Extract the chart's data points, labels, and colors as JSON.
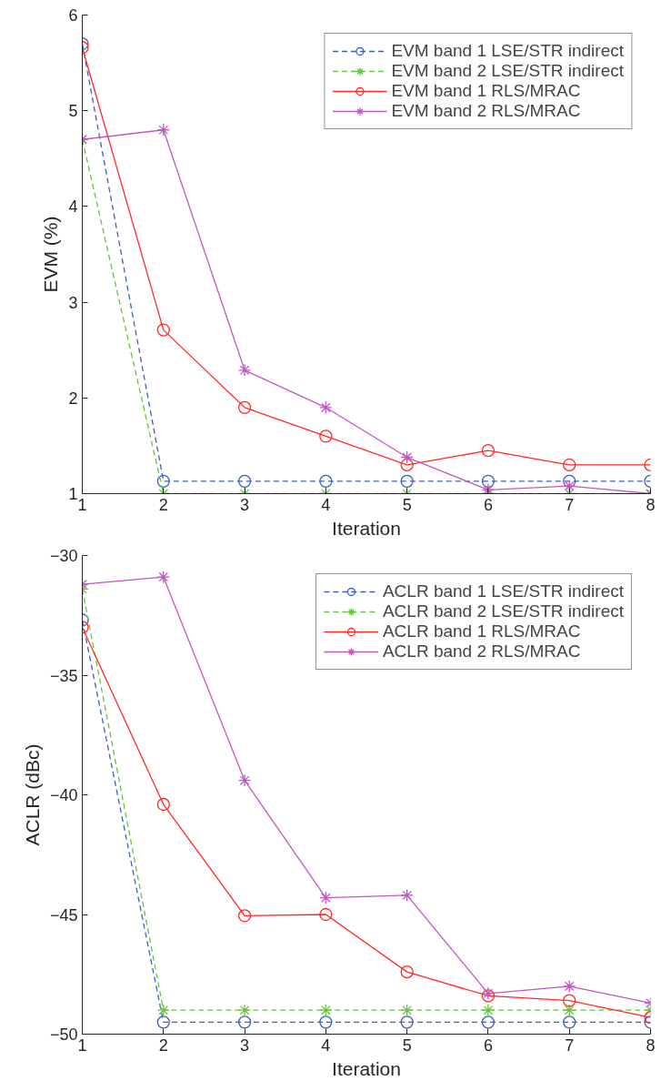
{
  "chart_data": [
    {
      "type": "line",
      "xlabel": "Iteration",
      "ylabel": "EVM (%)",
      "x": [
        1,
        2,
        3,
        4,
        5,
        6,
        7,
        8
      ],
      "xlim": [
        1,
        8
      ],
      "xticks": [
        1,
        2,
        3,
        4,
        5,
        6,
        7,
        8
      ],
      "ylim": [
        1,
        6
      ],
      "yticks": [
        1,
        2,
        3,
        4,
        5,
        6
      ],
      "grid": false,
      "legend": "top right",
      "series": [
        {
          "name": "EVM band 1 LSE/STR indirect",
          "color": "#3f5fbf",
          "marker": "circle",
          "line_style": "dashed",
          "values": [
            5.7,
            1.13,
            1.13,
            1.13,
            1.13,
            1.13,
            1.13,
            1.13
          ]
        },
        {
          "name": "EVM band 2 LSE/STR indirect",
          "color": "#66c33f",
          "marker": "cross",
          "line_style": "dashed",
          "values": [
            4.7,
            1.0,
            1.0,
            1.0,
            1.0,
            1.0,
            1.0,
            1.0
          ]
        },
        {
          "name": "EVM band 1 RLS/MRAC",
          "color": "#ff2a2a",
          "marker": "circle",
          "line_style": "solid",
          "values": [
            5.66,
            2.71,
            1.9,
            1.6,
            1.3,
            1.45,
            1.3,
            1.3
          ]
        },
        {
          "name": "EVM band 2 RLS/MRAC",
          "color": "#c058c0",
          "marker": "cross",
          "line_style": "solid",
          "values": [
            4.7,
            4.8,
            2.29,
            1.9,
            1.38,
            1.04,
            1.08,
            1.0
          ]
        }
      ]
    },
    {
      "type": "line",
      "xlabel": "Iteration",
      "ylabel": "ACLR (dBc)",
      "x": [
        1,
        2,
        3,
        4,
        5,
        6,
        7,
        8
      ],
      "xlim": [
        1,
        8
      ],
      "xticks": [
        1,
        2,
        3,
        4,
        5,
        6,
        7,
        8
      ],
      "ylim": [
        -50,
        -30
      ],
      "yticks": [
        -50,
        -45,
        -40,
        -35,
        -30
      ],
      "grid": false,
      "legend": "top right",
      "series": [
        {
          "name": "ACLR band 1 LSE/STR indirect",
          "color": "#3f5fbf",
          "marker": "circle",
          "line_style": "dashed",
          "values": [
            -32.7,
            -49.5,
            -49.5,
            -49.5,
            -49.5,
            -49.5,
            -49.5,
            -49.5
          ]
        },
        {
          "name": "ACLR band 2 LSE/STR indirect",
          "color": "#66c33f",
          "marker": "cross",
          "line_style": "dashed",
          "values": [
            -31.4,
            -49.0,
            -49.0,
            -49.0,
            -49.0,
            -49.0,
            -49.0,
            -49.0
          ]
        },
        {
          "name": "ACLR band 1 RLS/MRAC",
          "color": "#ff2a2a",
          "marker": "circle",
          "line_style": "solid",
          "values": [
            -33.0,
            -40.4,
            -45.05,
            -45.0,
            -47.4,
            -48.4,
            -48.6,
            -49.3
          ]
        },
        {
          "name": "ACLR band 2 RLS/MRAC",
          "color": "#c058c0",
          "marker": "cross",
          "line_style": "solid",
          "values": [
            -31.2,
            -30.9,
            -39.4,
            -44.3,
            -44.2,
            -48.3,
            -48.0,
            -48.7
          ]
        }
      ]
    }
  ]
}
